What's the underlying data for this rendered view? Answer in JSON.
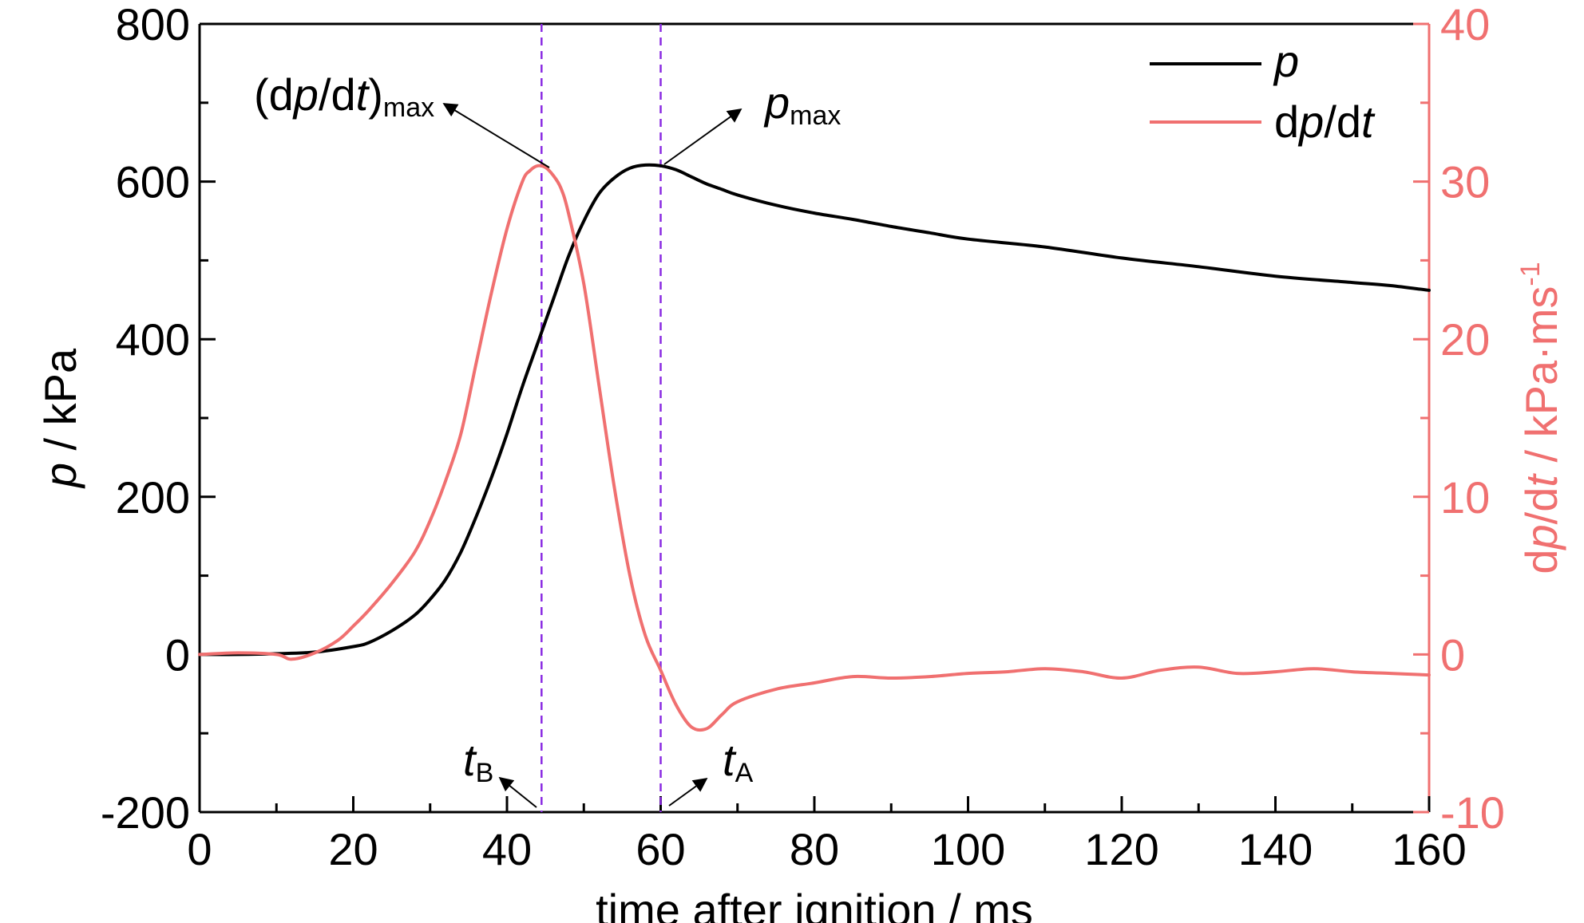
{
  "chart_data": {
    "type": "line",
    "xlabel": "time after ignition / ms",
    "ylabel": {
      "italic": "p",
      "rest": " / kPa"
    },
    "y2label": {
      "p1": "d",
      "p2": "p",
      "p3": "/d",
      "p4": "t",
      "p5": " / kPa·ms",
      "sup": "-1"
    },
    "xlim": [
      0,
      160
    ],
    "ylim": [
      -200,
      800
    ],
    "y2lim": [
      -10,
      40
    ],
    "xticks": [
      "0",
      "20",
      "40",
      "60",
      "80",
      "100",
      "120",
      "140",
      "160"
    ],
    "yticks": [
      "-200",
      "0",
      "200",
      "400",
      "600",
      "800"
    ],
    "y2ticks": [
      "-10",
      "0",
      "10",
      "20",
      "30",
      "40"
    ],
    "grid": false,
    "legend_position": "top-right",
    "colors": {
      "p": "#000000",
      "dpdt": "#f07070",
      "markers": "#8a2be2"
    },
    "series": [
      {
        "name": {
          "italic": "p",
          "rest": ""
        },
        "axis": "left",
        "x": [
          0,
          5,
          10,
          15,
          20,
          22,
          25,
          28,
          30,
          32,
          34,
          36,
          38,
          40,
          42,
          44,
          46,
          48,
          50,
          52,
          54,
          56,
          58,
          60,
          62,
          64,
          66,
          68,
          70,
          75,
          80,
          85,
          90,
          95,
          100,
          110,
          120,
          130,
          140,
          150,
          155,
          160
        ],
        "values": [
          0,
          0,
          1,
          3,
          10,
          15,
          30,
          50,
          70,
          95,
          130,
          175,
          225,
          280,
          340,
          395,
          450,
          505,
          550,
          585,
          605,
          617,
          621,
          620,
          615,
          606,
          597,
          590,
          583,
          570,
          560,
          552,
          543,
          535,
          527,
          517,
          503,
          492,
          480,
          472,
          468,
          462
        ]
      },
      {
        "name": {
          "p1": "d",
          "p2": "p",
          "p3": "/d",
          "p4": "t"
        },
        "axis": "right",
        "x": [
          0,
          5,
          10,
          12,
          15,
          18,
          20,
          22,
          25,
          28,
          30,
          32,
          34,
          36,
          38,
          40,
          42,
          43,
          44,
          45,
          46,
          47,
          48,
          50,
          52,
          54,
          56,
          58,
          60,
          62,
          64,
          66,
          68,
          70,
          75,
          80,
          85,
          90,
          95,
          100,
          105,
          110,
          115,
          120,
          125,
          130,
          135,
          140,
          145,
          150,
          155,
          160
        ],
        "values": [
          0,
          0.1,
          0,
          -0.3,
          0.1,
          0.9,
          1.8,
          2.8,
          4.5,
          6.5,
          8.5,
          11,
          14,
          18.5,
          23,
          27,
          30,
          30.7,
          31,
          30.9,
          30.4,
          29.6,
          28,
          23.5,
          17,
          10.5,
          5,
          1.2,
          -1,
          -3.2,
          -4.6,
          -4.7,
          -3.8,
          -3,
          -2.2,
          -1.8,
          -1.4,
          -1.5,
          -1.4,
          -1.2,
          -1.1,
          -0.9,
          -1.1,
          -1.5,
          -1,
          -0.8,
          -1.2,
          -1.1,
          -0.9,
          -1.1,
          -1.2,
          -1.3
        ]
      }
    ],
    "markers": [
      {
        "x": 44.5,
        "label": {
          "italic": "t",
          "sub": "B"
        }
      },
      {
        "x": 60,
        "label": {
          "italic": "t",
          "sub": "A"
        }
      }
    ],
    "annotations": [
      {
        "text": {
          "t1": "(d",
          "t2": "p",
          "t3": "/d",
          "t4": "t",
          "t5": ")",
          "sub": "max"
        },
        "target": [
          45,
          31
        ],
        "target_axis": "right"
      },
      {
        "text": {
          "italic": "p",
          "sub": "max"
        },
        "target": [
          60,
          621
        ],
        "target_axis": "left"
      }
    ]
  }
}
